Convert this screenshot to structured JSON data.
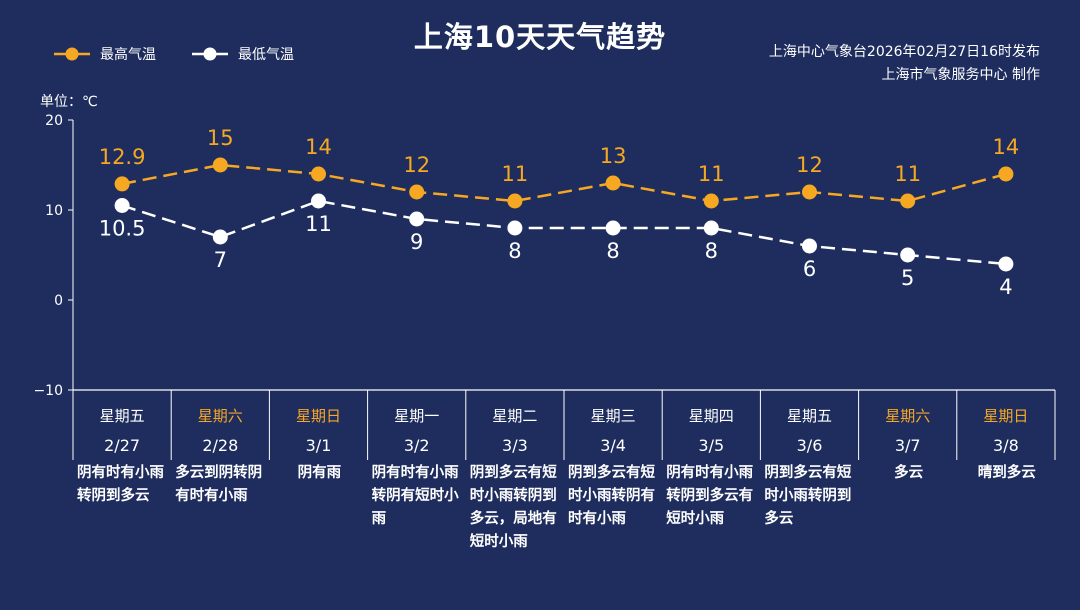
{
  "header": {
    "title": "上海10天天气趋势",
    "source_line1": "上海中心气象台2026年02月27日16时发布",
    "source_line2": "上海市气象服务中心  制作"
  },
  "colors": {
    "background": "#1e2d5e",
    "high": "#f7a823",
    "low": "#ffffff",
    "weekend": "#f7a823"
  },
  "chart_data": {
    "type": "line",
    "title": "上海10天天气趋势",
    "unit_label": "单位：℃",
    "ylim": [
      -10,
      20
    ],
    "yticks": [
      "20",
      "10",
      "0",
      "−10"
    ],
    "legend": [
      "最高气温",
      "最低气温"
    ],
    "legend_position": "top-left",
    "categories": [
      "2/27",
      "2/28",
      "3/1",
      "3/2",
      "3/3",
      "3/4",
      "3/5",
      "3/6",
      "3/7",
      "3/8"
    ],
    "weekdays": [
      "星期五",
      "星期六",
      "星期日",
      "星期一",
      "星期二",
      "星期三",
      "星期四",
      "星期五",
      "星期六",
      "星期日"
    ],
    "weekend": [
      false,
      true,
      true,
      false,
      false,
      false,
      false,
      false,
      true,
      true
    ],
    "series": [
      {
        "name": "最高气温",
        "values": [
          12.9,
          15,
          14,
          12,
          11,
          13,
          11,
          12,
          11,
          14
        ],
        "labels": [
          "12.9",
          "15",
          "14",
          "12",
          "11",
          "13",
          "11",
          "12",
          "11",
          "14"
        ]
      },
      {
        "name": "最低气温",
        "values": [
          10.5,
          7,
          11,
          9,
          8,
          8,
          8,
          6,
          5,
          4
        ],
        "labels": [
          "10.5",
          "7",
          "11",
          "9",
          "8",
          "8",
          "8",
          "6",
          "5",
          "4"
        ]
      }
    ],
    "weather": [
      "阴有时有小雨转阴到多云",
      "多云到阴转阴有时有小雨",
      "阴有雨",
      "阴有时有小雨转阴有短时小雨",
      "阴到多云有短时小雨转阴到多云，局地有短时小雨",
      "阴到多云有短时小雨转阴有时有小雨",
      "阴有时有小雨转阴到多云有短时小雨",
      "阴到多云有短时小雨转阴到多云",
      "多云",
      "晴到多云"
    ]
  }
}
